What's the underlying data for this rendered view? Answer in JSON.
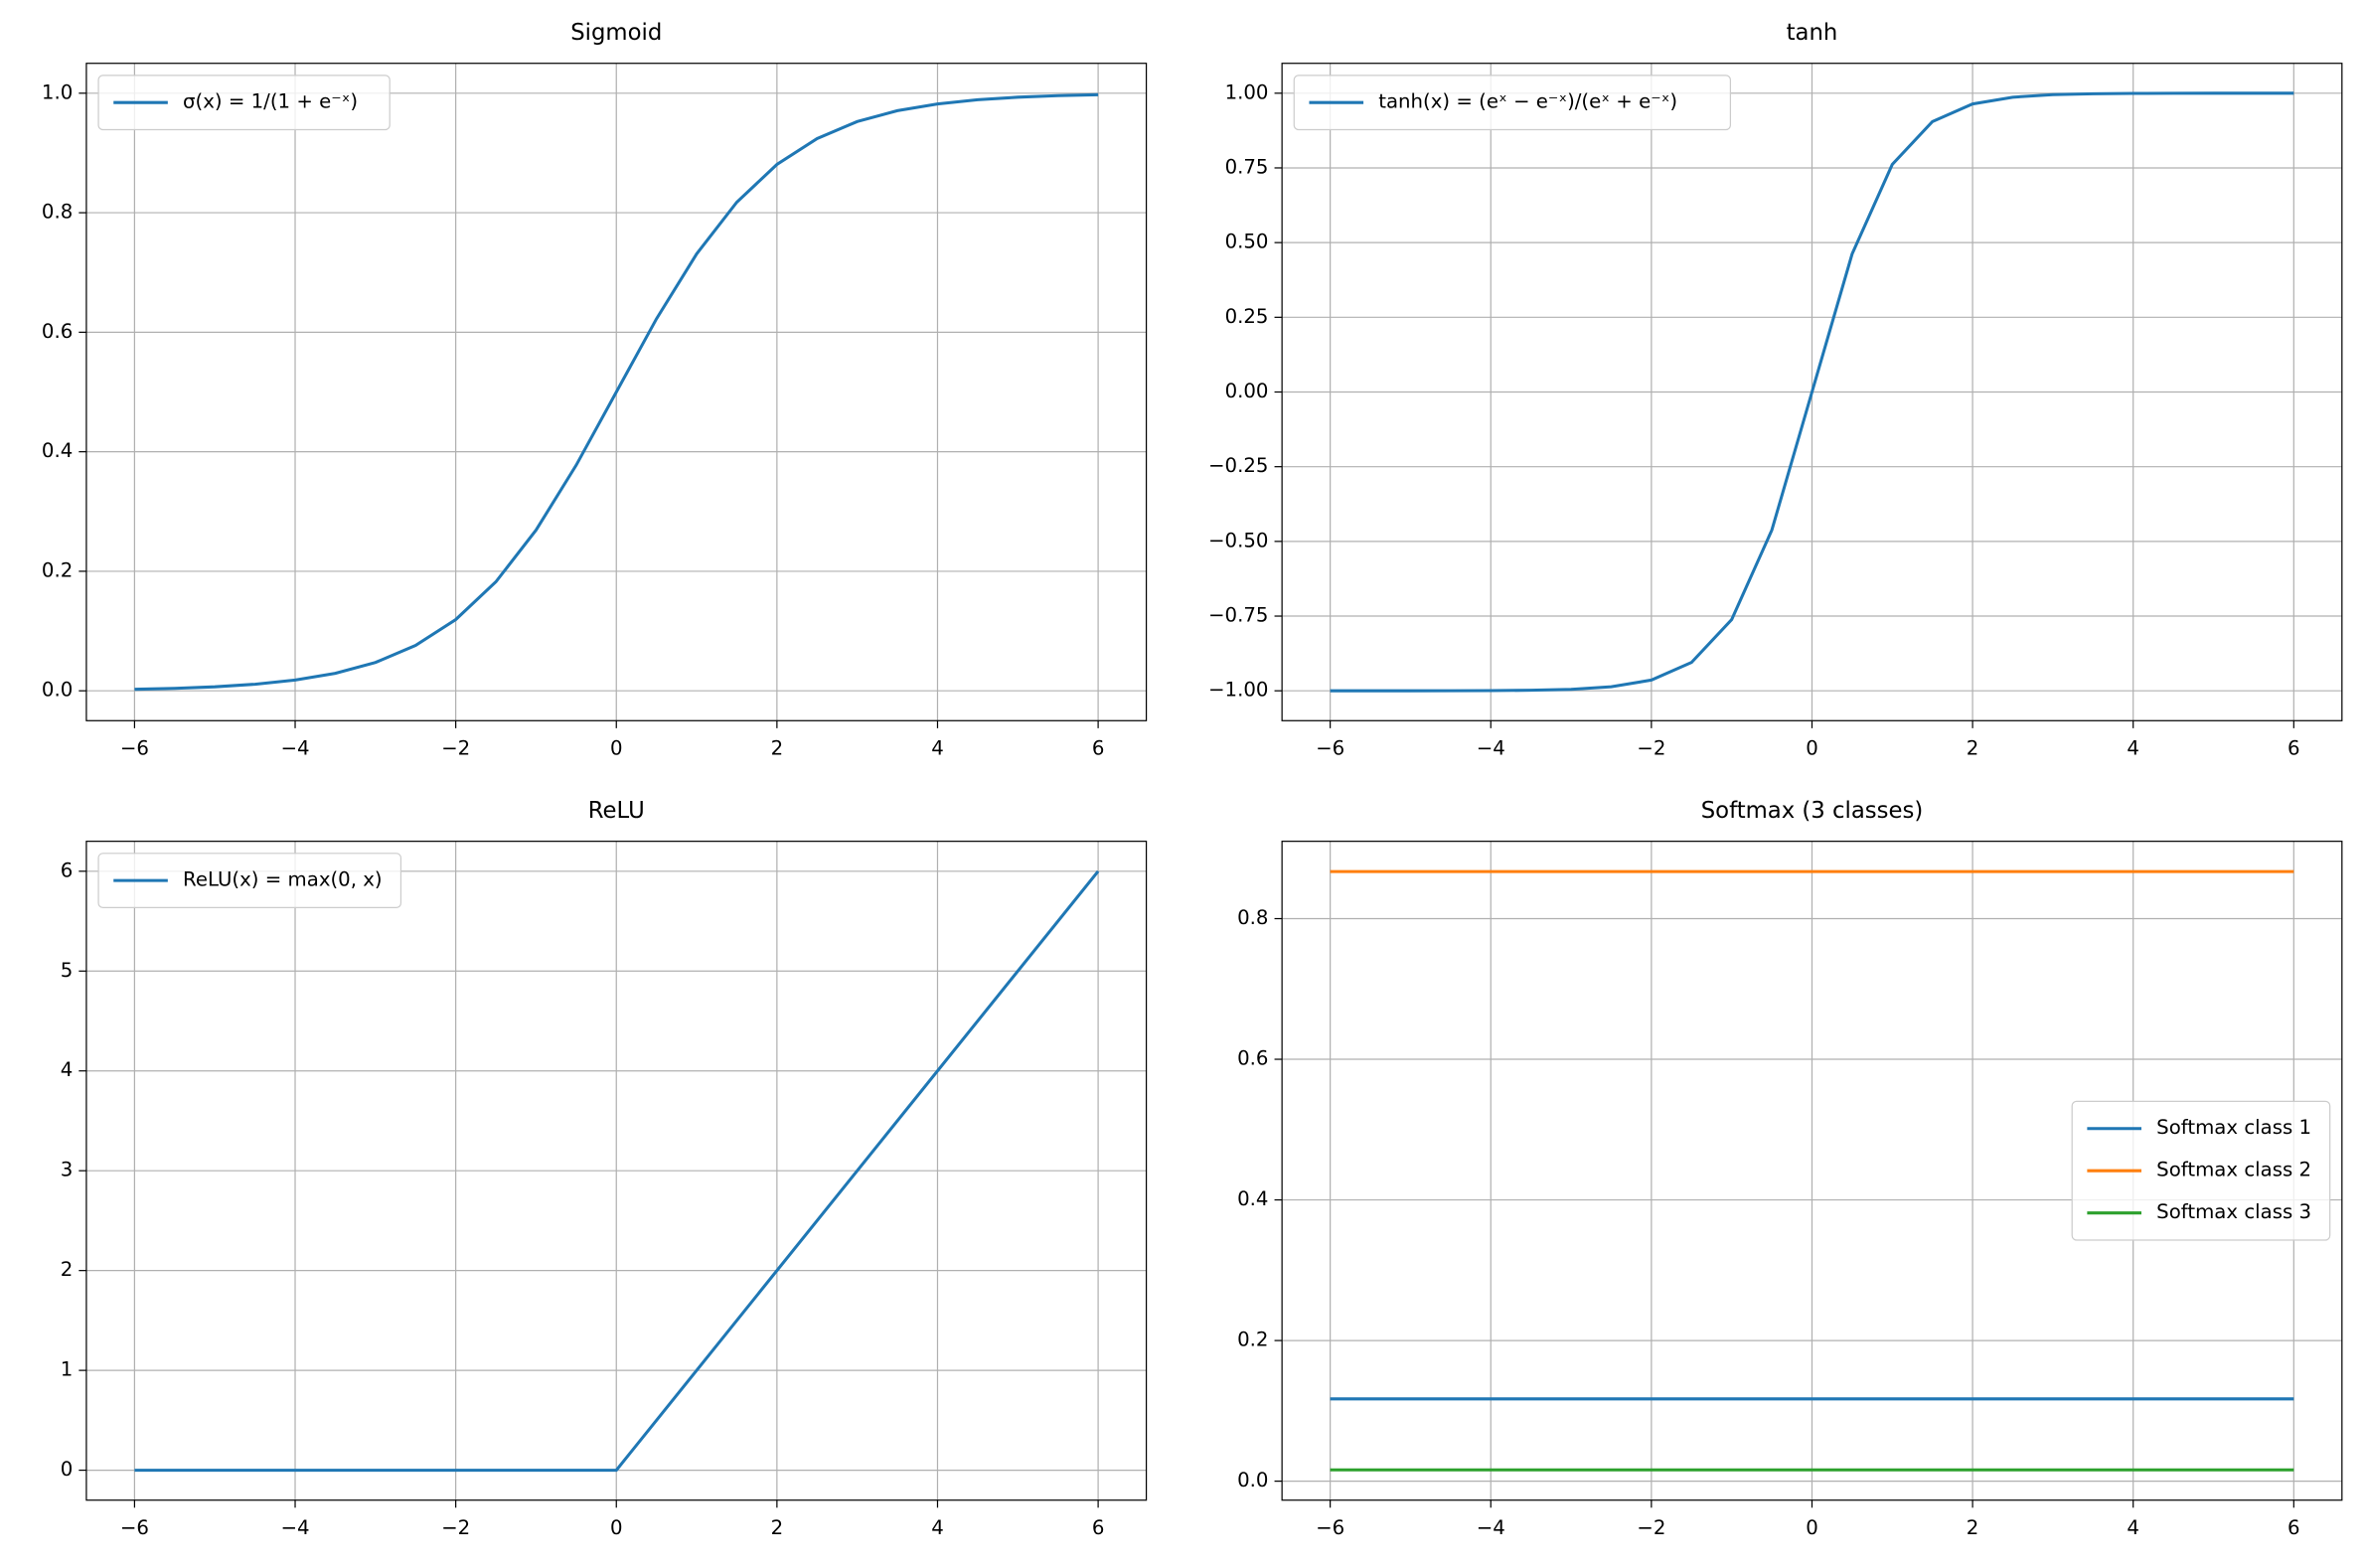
{
  "chart_data": [
    {
      "type": "line",
      "title": "Sigmoid",
      "legend": "upper left",
      "grid": true,
      "x": [
        -6,
        -5.5,
        -5,
        -4.5,
        -4,
        -3.5,
        -3,
        -2.5,
        -2,
        -1.5,
        -1,
        -0.5,
        0,
        0.5,
        1,
        1.5,
        2,
        2.5,
        3,
        3.5,
        4,
        4.5,
        5,
        5.5,
        6
      ],
      "series": [
        {
          "name": "σ(x) = 1/(1 + e⁻ˣ)",
          "color": "#1f77b4",
          "values": [
            0.0025,
            0.0041,
            0.0067,
            0.011,
            0.018,
            0.0293,
            0.0474,
            0.0759,
            0.1192,
            0.1824,
            0.2689,
            0.3775,
            0.5,
            0.6225,
            0.7311,
            0.8176,
            0.8808,
            0.9241,
            0.9526,
            0.9707,
            0.982,
            0.989,
            0.9933,
            0.9959,
            0.9975
          ]
        }
      ],
      "xlim": [
        -6.6,
        6.6
      ],
      "ylim": [
        -0.05,
        1.05
      ],
      "xticks": [
        {
          "value": -6,
          "label": "−6"
        },
        {
          "value": -4,
          "label": "−4"
        },
        {
          "value": -2,
          "label": "−2"
        },
        0,
        2,
        4,
        6
      ],
      "yticks": [
        {
          "value": 0,
          "label": "0.0"
        },
        0.2,
        0.4,
        0.6,
        0.8,
        {
          "value": 1,
          "label": "1.0"
        }
      ]
    },
    {
      "type": "line",
      "title": "tanh",
      "legend": "upper left",
      "grid": true,
      "x": [
        -6,
        -5.5,
        -5,
        -4.5,
        -4,
        -3.5,
        -3,
        -2.5,
        -2,
        -1.5,
        -1,
        -0.5,
        0,
        0.5,
        1,
        1.5,
        2,
        2.5,
        3,
        3.5,
        4,
        4.5,
        5,
        5.5,
        6
      ],
      "series": [
        {
          "name": "tanh(x) = (eˣ − e⁻ˣ)/(eˣ + e⁻ˣ)",
          "color": "#1f77b4",
          "values": [
            -1,
            -1,
            -0.9999,
            -0.9998,
            -0.9993,
            -0.9982,
            -0.9951,
            -0.9866,
            -0.964,
            -0.9051,
            -0.7616,
            -0.4621,
            0,
            0.4621,
            0.7616,
            0.9051,
            0.964,
            0.9866,
            0.9951,
            0.9982,
            0.9993,
            0.9998,
            0.9999,
            1,
            1
          ]
        }
      ],
      "xlim": [
        -6.6,
        6.6
      ],
      "ylim": [
        -1.1,
        1.1
      ],
      "xticks": [
        {
          "value": -6,
          "label": "−6"
        },
        {
          "value": -4,
          "label": "−4"
        },
        {
          "value": -2,
          "label": "−2"
        },
        0,
        2,
        4,
        6
      ],
      "yticks": [
        {
          "value": -1,
          "label": "−1.00"
        },
        {
          "value": -0.75,
          "label": "−0.75"
        },
        {
          "value": -0.5,
          "label": "−0.50"
        },
        {
          "value": -0.25,
          "label": "−0.25"
        },
        {
          "value": 0,
          "label": "0.00"
        },
        0.25,
        {
          "value": 0.5,
          "label": "0.50"
        },
        0.75,
        {
          "value": 1,
          "label": "1.00"
        }
      ]
    },
    {
      "type": "line",
      "title": "ReLU",
      "legend": "upper left",
      "grid": true,
      "x": [
        -6,
        0,
        6
      ],
      "series": [
        {
          "name": "ReLU(x) = max(0, x)",
          "color": "#1f77b4",
          "values": [
            0,
            0,
            6
          ]
        }
      ],
      "xlim": [
        -6.6,
        6.6
      ],
      "ylim": [
        -0.3,
        6.3
      ],
      "xticks": [
        {
          "value": -6,
          "label": "−6"
        },
        {
          "value": -4,
          "label": "−4"
        },
        {
          "value": -2,
          "label": "−2"
        },
        0,
        2,
        4,
        6
      ],
      "yticks": [
        0,
        1,
        2,
        3,
        4,
        5,
        6
      ]
    },
    {
      "type": "line",
      "title": "Softmax (3 classes)",
      "legend": "center right",
      "grid": true,
      "x": [
        -6,
        6
      ],
      "series": [
        {
          "name": "Softmax class 1",
          "color": "#1f77b4",
          "values": [
            0.117,
            0.117
          ]
        },
        {
          "name": "Softmax class 2",
          "color": "#ff7f0e",
          "values": [
            0.867,
            0.867
          ]
        },
        {
          "name": "Softmax class 3",
          "color": "#2ca02c",
          "values": [
            0.016,
            0.016
          ]
        }
      ],
      "xlim": [
        -6.6,
        6.6
      ],
      "ylim": [
        -0.027,
        0.91
      ],
      "xticks": [
        {
          "value": -6,
          "label": "−6"
        },
        {
          "value": -4,
          "label": "−4"
        },
        {
          "value": -2,
          "label": "−2"
        },
        0,
        2,
        4,
        6
      ],
      "yticks": [
        {
          "value": 0,
          "label": "0.0"
        },
        0.2,
        0.4,
        0.6,
        0.8
      ]
    }
  ]
}
